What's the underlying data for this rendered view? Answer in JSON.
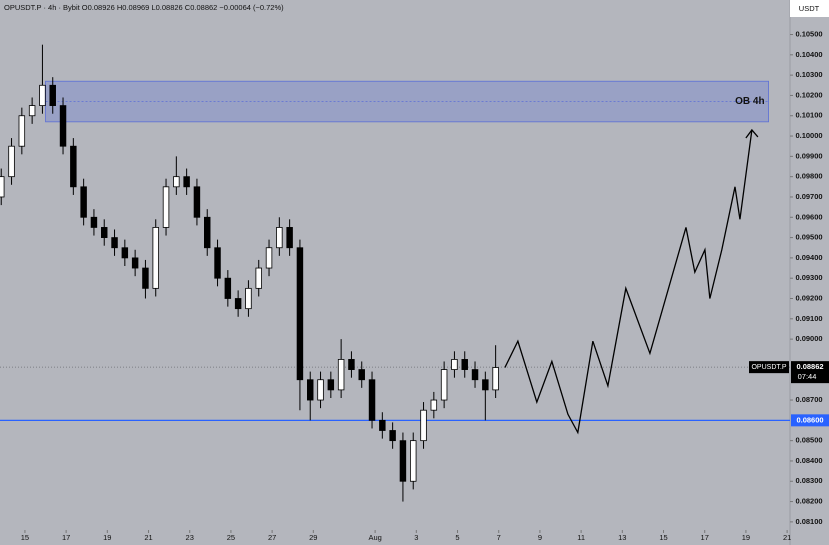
{
  "chart_data": {
    "type": "candlestick",
    "header": "OPUSDT.P · 4h · Bybit O0.08926 H0.08969 L0.08826 C0.08862 −0.00064 (−0.72%)",
    "currency": "USDT",
    "xlim": [
      13.79,
      52.14
    ],
    "ylim": [
      0.0806,
      0.1067
    ],
    "grid": false,
    "xticks": [
      15,
      17,
      19,
      21,
      23,
      25,
      27,
      29,
      {
        "value": 32,
        "label": "Aug"
      },
      {
        "value": 34,
        "label": "3"
      },
      {
        "value": 36,
        "label": "5"
      },
      {
        "value": 38,
        "label": "7"
      },
      {
        "value": 40,
        "label": "9"
      },
      {
        "value": 42,
        "label": "11"
      },
      {
        "value": 44,
        "label": "13"
      },
      {
        "value": 46,
        "label": "15"
      },
      {
        "value": 48,
        "label": "17"
      },
      {
        "value": 50,
        "label": "19"
      },
      {
        "value": 52,
        "label": "21"
      }
    ],
    "yticks": [
      {
        "value": 0.081,
        "label": "0.08100"
      },
      {
        "value": 0.082,
        "label": "0.08200"
      },
      {
        "value": 0.083,
        "label": "0.08300"
      },
      {
        "value": 0.084,
        "label": "0.08400"
      },
      {
        "value": 0.085,
        "label": "0.08500"
      },
      {
        "value": 0.087,
        "label": "0.08700"
      },
      {
        "value": 0.09,
        "label": "0.09000"
      },
      {
        "value": 0.091,
        "label": "0.09100"
      },
      {
        "value": 0.092,
        "label": "0.09200"
      },
      {
        "value": 0.093,
        "label": "0.09300"
      },
      {
        "value": 0.094,
        "label": "0.09400"
      },
      {
        "value": 0.095,
        "label": "0.09500"
      },
      {
        "value": 0.096,
        "label": "0.09600"
      },
      {
        "value": 0.097,
        "label": "0.09700"
      },
      {
        "value": 0.098,
        "label": "0.09800"
      },
      {
        "value": 0.099,
        "label": "0.09900"
      },
      {
        "value": 0.1,
        "label": "0.10000"
      },
      {
        "value": 0.101,
        "label": "0.10100"
      },
      {
        "value": 0.102,
        "label": "0.10200"
      },
      {
        "value": 0.103,
        "label": "0.10300"
      },
      {
        "value": 0.104,
        "label": "0.10400"
      },
      {
        "value": 0.105,
        "label": "0.10500"
      }
    ],
    "series": [
      {
        "name": "OPUSDT.P",
        "up_color": "#ffffff",
        "down_color": "#000000",
        "x": [
          13.85,
          14.35,
          14.85,
          15.35,
          15.85,
          16.35,
          16.85,
          17.35,
          17.85,
          18.35,
          18.85,
          19.35,
          19.85,
          20.35,
          20.85,
          21.35,
          21.85,
          22.35,
          22.85,
          23.35,
          23.85,
          24.35,
          24.85,
          25.35,
          25.85,
          26.35,
          26.85,
          27.35,
          27.85,
          28.35,
          28.85,
          29.35,
          29.85,
          30.35,
          30.85,
          31.35,
          31.85,
          32.35,
          32.85,
          33.35,
          33.85,
          34.35,
          34.85,
          35.35,
          35.85,
          36.35,
          36.85,
          37.35,
          37.85
        ],
        "open": [
          0.097,
          0.098,
          0.0995,
          0.101,
          0.1015,
          0.1025,
          0.1015,
          0.0995,
          0.0975,
          0.096,
          0.0955,
          0.095,
          0.0945,
          0.094,
          0.0935,
          0.0925,
          0.0955,
          0.0975,
          0.098,
          0.0975,
          0.096,
          0.0945,
          0.093,
          0.092,
          0.0915,
          0.0925,
          0.0935,
          0.0945,
          0.0955,
          0.0945,
          0.088,
          0.087,
          0.088,
          0.0875,
          0.089,
          0.0885,
          0.088,
          0.086,
          0.0855,
          0.085,
          0.083,
          0.085,
          0.0865,
          0.087,
          0.0885,
          0.089,
          0.0885,
          0.088,
          0.0875
        ],
        "high": [
          0.0984,
          0.0999,
          0.1014,
          0.1019,
          0.1045,
          0.1029,
          0.1019,
          0.0999,
          0.0979,
          0.0964,
          0.0959,
          0.0954,
          0.0949,
          0.0944,
          0.0939,
          0.0959,
          0.0979,
          0.099,
          0.0984,
          0.0979,
          0.0964,
          0.0949,
          0.0934,
          0.0924,
          0.0929,
          0.0939,
          0.0949,
          0.096,
          0.0959,
          0.0949,
          0.0884,
          0.0884,
          0.0884,
          0.09,
          0.0894,
          0.0889,
          0.0884,
          0.0864,
          0.0859,
          0.0854,
          0.0854,
          0.0869,
          0.0874,
          0.0889,
          0.0894,
          0.0894,
          0.0889,
          0.0884,
          0.0897
        ],
        "low": [
          0.0966,
          0.0976,
          0.0991,
          0.1006,
          0.1011,
          0.1011,
          0.0991,
          0.0971,
          0.0956,
          0.0951,
          0.0946,
          0.0941,
          0.0936,
          0.0931,
          0.092,
          0.0921,
          0.0951,
          0.0971,
          0.0971,
          0.0956,
          0.0941,
          0.0926,
          0.0916,
          0.0911,
          0.0911,
          0.0921,
          0.0931,
          0.0941,
          0.0941,
          0.0865,
          0.086,
          0.0866,
          0.0871,
          0.0871,
          0.0881,
          0.0876,
          0.0856,
          0.0851,
          0.0846,
          0.082,
          0.0826,
          0.0846,
          0.0861,
          0.0866,
          0.0881,
          0.0881,
          0.0876,
          0.086,
          0.0871
        ],
        "close": [
          0.098,
          0.0995,
          0.101,
          0.1015,
          0.1025,
          0.1015,
          0.0995,
          0.0975,
          0.096,
          0.0955,
          0.095,
          0.0945,
          0.094,
          0.0935,
          0.0925,
          0.0955,
          0.0975,
          0.098,
          0.0975,
          0.096,
          0.0945,
          0.093,
          0.092,
          0.0915,
          0.0925,
          0.0935,
          0.0945,
          0.0955,
          0.0945,
          0.088,
          0.087,
          0.088,
          0.0875,
          0.089,
          0.0885,
          0.088,
          0.086,
          0.0855,
          0.085,
          0.083,
          0.085,
          0.0865,
          0.087,
          0.0885,
          0.089,
          0.0885,
          0.088,
          0.0875,
          0.0886
        ]
      }
    ],
    "projection": {
      "color": "#000000",
      "x": [
        38.3,
        38.93,
        39.85,
        40.58,
        41.36,
        41.84,
        42.57,
        43.3,
        44.17,
        45.34,
        47.09,
        47.52,
        48.01,
        48.25,
        48.83,
        49.47,
        49.71,
        50.29
      ],
      "values": [
        0.0886,
        0.0899,
        0.0869,
        0.0889,
        0.0863,
        0.0854,
        0.0899,
        0.0877,
        0.0925,
        0.0893,
        0.0955,
        0.0933,
        0.0944,
        0.092,
        0.0944,
        0.0975,
        0.0959,
        0.1003
      ]
    },
    "zone": {
      "label": "OB 4h",
      "low": 0.1007,
      "high": 0.1027,
      "mid": 0.1017,
      "x_start": 16,
      "x_end": 51.1,
      "color": "#5c6fd6"
    },
    "support": {
      "value": 0.086,
      "label": "0.08600",
      "color": "#2962ff"
    },
    "last_price": {
      "value": 0.08862,
      "label": "0.08862",
      "countdown": "07:44"
    }
  }
}
